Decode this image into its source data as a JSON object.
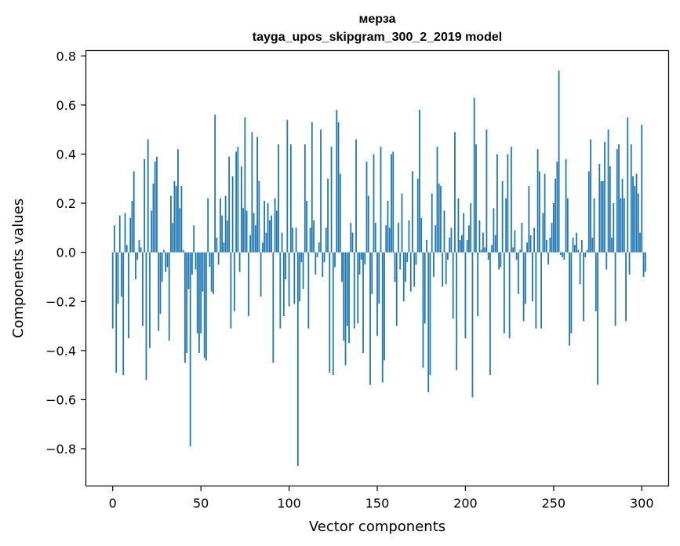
{
  "chart_data": {
    "type": "bar",
    "title": "мерза",
    "subtitle": "tayga_upos_skipgram_300_2_2019 model",
    "xlabel": "Vector components",
    "ylabel": "Components values",
    "xlim": [
      -15,
      315
    ],
    "ylim": [
      -0.95,
      0.82
    ],
    "xticks": [
      0,
      50,
      100,
      150,
      200,
      250,
      300
    ],
    "yticks": [
      -0.8,
      -0.6,
      -0.4,
      -0.2,
      0.0,
      0.2,
      0.4,
      0.6,
      0.8
    ],
    "ytick_labels": [
      "−0.8",
      "−0.6",
      "−0.4",
      "−0.2",
      "0.0",
      "0.2",
      "0.4",
      "0.6",
      "0.8"
    ],
    "bar_color": "#1f77b4",
    "values": [
      -0.31,
      0.11,
      -0.49,
      -0.21,
      0.15,
      -0.18,
      -0.5,
      0.16,
      0.03,
      -0.35,
      0.14,
      0.21,
      0.33,
      -0.11,
      -0.03,
      0.05,
      0.02,
      -0.3,
      0.38,
      -0.52,
      0.46,
      -0.39,
      0.17,
      0.28,
      0.37,
      0.39,
      -0.32,
      -0.25,
      -0.12,
      0.01,
      -0.08,
      -0.06,
      -0.36,
      0.23,
      0.12,
      0.29,
      0.27,
      0.42,
      0.18,
      0.27,
      0.01,
      -0.45,
      -0.41,
      -0.15,
      -0.79,
      -0.09,
      0.11,
      -0.07,
      -0.33,
      -0.41,
      -0.33,
      -0.16,
      -0.43,
      -0.44,
      0.22,
      -0.06,
      -0.16,
      -0.17,
      0.56,
      0.06,
      -0.05,
      0.22,
      0.15,
      0.04,
      0.23,
      0.13,
      0.39,
      -0.31,
      0.31,
      -0.24,
      0.41,
      0.43,
      -0.08,
      0.35,
      0.18,
      0.55,
      0.17,
      -0.26,
      0.07,
      0.49,
      0.16,
      0.11,
      0.47,
      0.29,
      -0.18,
      0.04,
      0.21,
      0.08,
      0.2,
      0.13,
      0.15,
      -0.45,
      0.22,
      0.17,
      0.44,
      -0.31,
      0.08,
      -0.26,
      -0.11,
      0.54,
      -0.22,
      0.44,
      0.1,
      -0.21,
      0.1,
      -0.87,
      -0.2,
      -0.04,
      -0.15,
      0.44,
      0.21,
      -0.31,
      0.1,
      0.53,
      0.13,
      -0.09,
      -0.02,
      0.04,
      0.5,
      -0.1,
      -0.04,
      0.1,
      0.3,
      -0.49,
      0.43,
      -0.5,
      -0.06,
      0.58,
      0.53,
      0.32,
      -0.12,
      -0.36,
      -0.46,
      -0.3,
      -0.37,
      0.12,
      0.08,
      -0.31,
      0.46,
      -0.29,
      -0.09,
      -0.03,
      -0.41,
      -0.05,
      0.37,
      0.23,
      -0.54,
      -0.17,
      0.4,
      0.12,
      -0.34,
      -0.21,
      0.43,
      -0.53,
      -0.44,
      0.11,
      0.21,
      0.1,
      0.4,
      0.41,
      -0.12,
      -0.3,
      0.12,
      -0.07,
      0.24,
      -0.2,
      -0.12,
      -0.04,
      0.13,
      -0.16,
      0.33,
      -0.14,
      -0.05,
      0.3,
      0.58,
      0.14,
      -0.47,
      -0.29,
      0.05,
      -0.57,
      -0.5,
      0.24,
      -0.1,
      0.11,
      0.43,
      0.28,
      0.27,
      -0.14,
      0.17,
      -0.13,
      -0.03,
      0.06,
      0.1,
      -0.27,
      0.49,
      -0.48,
      0.22,
      0.05,
      0.07,
      0.16,
      -0.35,
      0.05,
      0.11,
      0.2,
      -0.59,
      0.63,
      0.44,
      -0.26,
      0.13,
      0.01,
      0.08,
      0.02,
      0.5,
      -0.03,
      -0.5,
      0.03,
      0.18,
      0.07,
      0.4,
      -0.07,
      -0.06,
      0.29,
      -0.33,
      0.22,
      0.4,
      -0.35,
      0.43,
      0.02,
      0.09,
      -0.03,
      -0.17,
      0.01,
      0.12,
      -0.28,
      -0.21,
      0.04,
      0.27,
      0.07,
      -0.2,
      0.1,
      -0.31,
      0.42,
      0.33,
      -0.31,
      0.16,
      0.32,
      0.05,
      -0.05,
      0.06,
      0.12,
      0.2,
      0.3,
      0.37,
      0.74,
      -0.01,
      -0.02,
      -0.03,
      0.38,
      0.22,
      -0.38,
      -0.33,
      0.06,
      0.03,
      0.08,
      0.01,
      -0.13,
      0.05,
      -0.28,
      -0.02,
      0.01,
      0.33,
      0.46,
      0.06,
      0.22,
      -0.24,
      -0.54,
      0.36,
      0.29,
      0.29,
      0.45,
      -0.07,
      0.5,
      0.35,
      0.06,
      0.2,
      -0.3,
      0.42,
      0.44,
      0.22,
      0.3,
      0.22,
      -0.28,
      0.55,
      -0.09,
      0.44,
      0.31,
      0.27,
      0.32,
      0.24,
      0.08,
      0.52,
      -0.1,
      -0.08
    ]
  }
}
